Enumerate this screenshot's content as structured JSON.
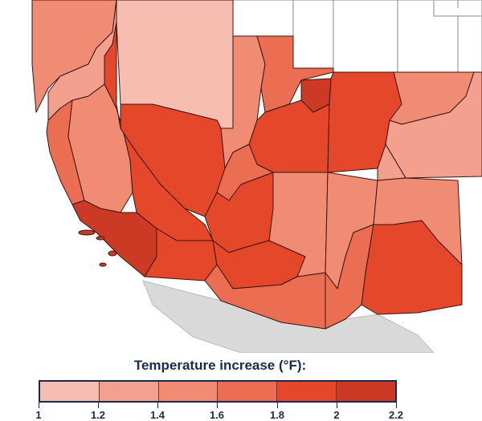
{
  "legend": {
    "title": "Temperature increase (°F):",
    "bins": [
      {
        "from": "1",
        "to": "1.2",
        "color": "#f6bdb0"
      },
      {
        "from": "1.2",
        "to": "1.4",
        "color": "#f3a08e"
      },
      {
        "from": "1.4",
        "to": "1.6",
        "color": "#f08c74"
      },
      {
        "from": "1.6",
        "to": "1.8",
        "color": "#ec6e52"
      },
      {
        "from": "1.8",
        "to": "2",
        "color": "#e5472b"
      },
      {
        "from": "2",
        "to": "2.2",
        "color": "#cc3a26"
      }
    ],
    "ticks": [
      "1",
      "1.2",
      "1.4",
      "1.6",
      "1.8",
      "2",
      "2.2"
    ]
  },
  "map": {
    "border_color": "#3a1410",
    "outside_land_color": "#ffffff",
    "mexico_color": "#d9d9d9",
    "ocean_color": "#ffffff"
  }
}
